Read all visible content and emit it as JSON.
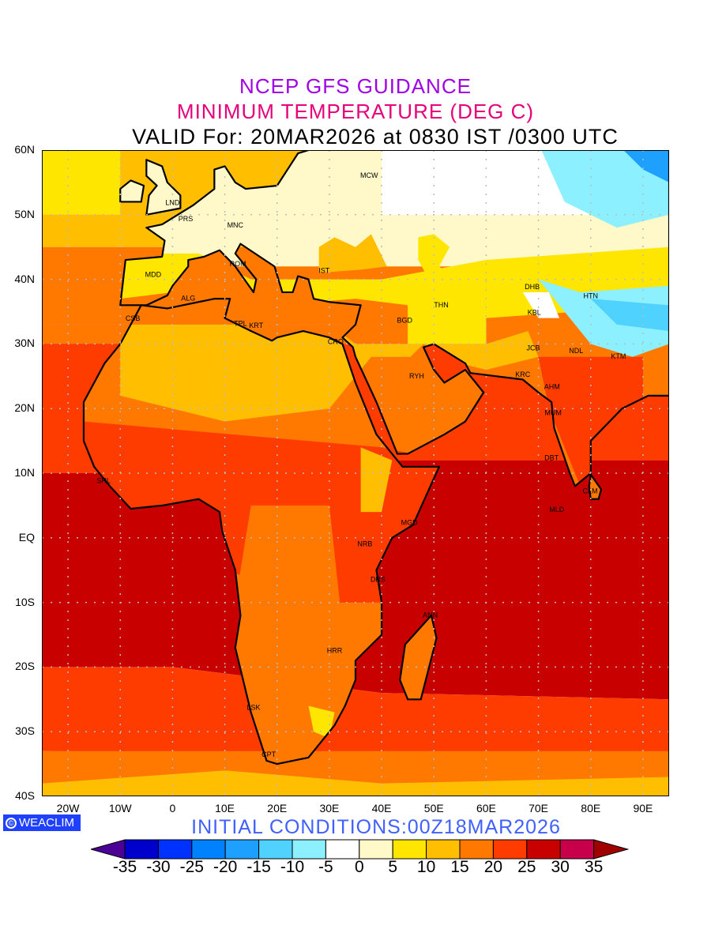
{
  "header": {
    "line1": "NCEP GFS GUIDANCE",
    "line2": "MINIMUM TEMPERATURE (DEG C)",
    "line3": "VALID For: 20MAR2026 at 0830 IST /0300 UTC"
  },
  "axes": {
    "lat_labels": [
      {
        "lat": 60,
        "text": "60N"
      },
      {
        "lat": 50,
        "text": "50N"
      },
      {
        "lat": 40,
        "text": "40N"
      },
      {
        "lat": 30,
        "text": "30N"
      },
      {
        "lat": 20,
        "text": "20N"
      },
      {
        "lat": 10,
        "text": "10N"
      },
      {
        "lat": 0,
        "text": "EQ"
      },
      {
        "lat": -10,
        "text": "10S"
      },
      {
        "lat": -20,
        "text": "20S"
      },
      {
        "lat": -30,
        "text": "30S"
      },
      {
        "lat": -40,
        "text": "40S"
      }
    ],
    "lon_labels": [
      {
        "lon": -20,
        "text": "20W"
      },
      {
        "lon": -10,
        "text": "10W"
      },
      {
        "lon": 0,
        "text": "0"
      },
      {
        "lon": 10,
        "text": "10E"
      },
      {
        "lon": 20,
        "text": "20E"
      },
      {
        "lon": 30,
        "text": "30E"
      },
      {
        "lon": 40,
        "text": "40E"
      },
      {
        "lon": 50,
        "text": "50E"
      },
      {
        "lon": 60,
        "text": "60E"
      },
      {
        "lon": 70,
        "text": "70E"
      },
      {
        "lon": 80,
        "text": "80E"
      },
      {
        "lon": 90,
        "text": "90E"
      }
    ],
    "lon_range": [
      -25,
      95
    ],
    "lat_range": [
      -40,
      60
    ]
  },
  "cities": [
    {
      "name": "LND",
      "lon": 0,
      "lat": 51.5
    },
    {
      "name": "PRS",
      "lon": 2.5,
      "lat": 49
    },
    {
      "name": "MNC",
      "lon": 12,
      "lat": 48
    },
    {
      "name": "ROM",
      "lon": 12.5,
      "lat": 42
    },
    {
      "name": "MDD",
      "lon": -3.7,
      "lat": 40.4
    },
    {
      "name": "ALG",
      "lon": 3,
      "lat": 36.7
    },
    {
      "name": "CSB",
      "lon": -7.6,
      "lat": 33.6
    },
    {
      "name": "TPL",
      "lon": 13,
      "lat": 32.8
    },
    {
      "name": "KRT",
      "lon": 16,
      "lat": 32.5
    },
    {
      "name": "IST",
      "lon": 29,
      "lat": 41
    },
    {
      "name": "CRO",
      "lon": 31.2,
      "lat": 30
    },
    {
      "name": "BGD",
      "lon": 44.4,
      "lat": 33.3
    },
    {
      "name": "THN",
      "lon": 51.4,
      "lat": 35.7
    },
    {
      "name": "MCW",
      "lon": 37.6,
      "lat": 55.7
    },
    {
      "name": "RYH",
      "lon": 46.7,
      "lat": 24.7
    },
    {
      "name": "KRC",
      "lon": 67,
      "lat": 24.9
    },
    {
      "name": "JCB",
      "lon": 69,
      "lat": 29
    },
    {
      "name": "DHB",
      "lon": 68.8,
      "lat": 38.5
    },
    {
      "name": "KBL",
      "lon": 69.2,
      "lat": 34.5
    },
    {
      "name": "HTN",
      "lon": 80,
      "lat": 37.1
    },
    {
      "name": "NDL",
      "lon": 77.2,
      "lat": 28.6
    },
    {
      "name": "AHM",
      "lon": 72.6,
      "lat": 23
    },
    {
      "name": "MUM",
      "lon": 72.8,
      "lat": 19
    },
    {
      "name": "KTM",
      "lon": 85.3,
      "lat": 27.7
    },
    {
      "name": "DBT",
      "lon": 72.5,
      "lat": 12
    },
    {
      "name": "CLM",
      "lon": 79.9,
      "lat": 6.9
    },
    {
      "name": "MLD",
      "lon": 73.5,
      "lat": 4
    },
    {
      "name": "MGD",
      "lon": 45.3,
      "lat": 2
    },
    {
      "name": "NRB",
      "lon": 36.8,
      "lat": -1.3
    },
    {
      "name": "DRS",
      "lon": 39.3,
      "lat": -6.8
    },
    {
      "name": "ANN",
      "lon": 49.3,
      "lat": -12.3
    },
    {
      "name": "HRR",
      "lon": 31,
      "lat": -17.8
    },
    {
      "name": "LSK",
      "lon": 15.5,
      "lat": -26.6
    },
    {
      "name": "CPT",
      "lon": 18.4,
      "lat": -33.9
    },
    {
      "name": "SRL",
      "lon": -13.2,
      "lat": 8.5
    }
  ],
  "footer": {
    "logo": "WEACLIM",
    "logo_icon": "copyright-circle-icon",
    "initial": "INITIAL  CONDITIONS:00Z18MAR2026"
  },
  "colorbar": {
    "under_color": "#4b0096",
    "over_color": "#a00000",
    "colors": [
      "#0000cd",
      "#0032ff",
      "#0082ff",
      "#1ea0ff",
      "#50d2ff",
      "#8cf0ff",
      "#ffffff",
      "#fff8c8",
      "#ffe600",
      "#ffbe00",
      "#ff7800",
      "#ff3c00",
      "#c80000",
      "#c8004b"
    ],
    "labels": [
      "-35",
      "-30",
      "-25",
      "-20",
      "-15",
      "-10",
      "-5",
      "0",
      "5",
      "10",
      "15",
      "20",
      "25",
      "30",
      "35"
    ]
  }
}
